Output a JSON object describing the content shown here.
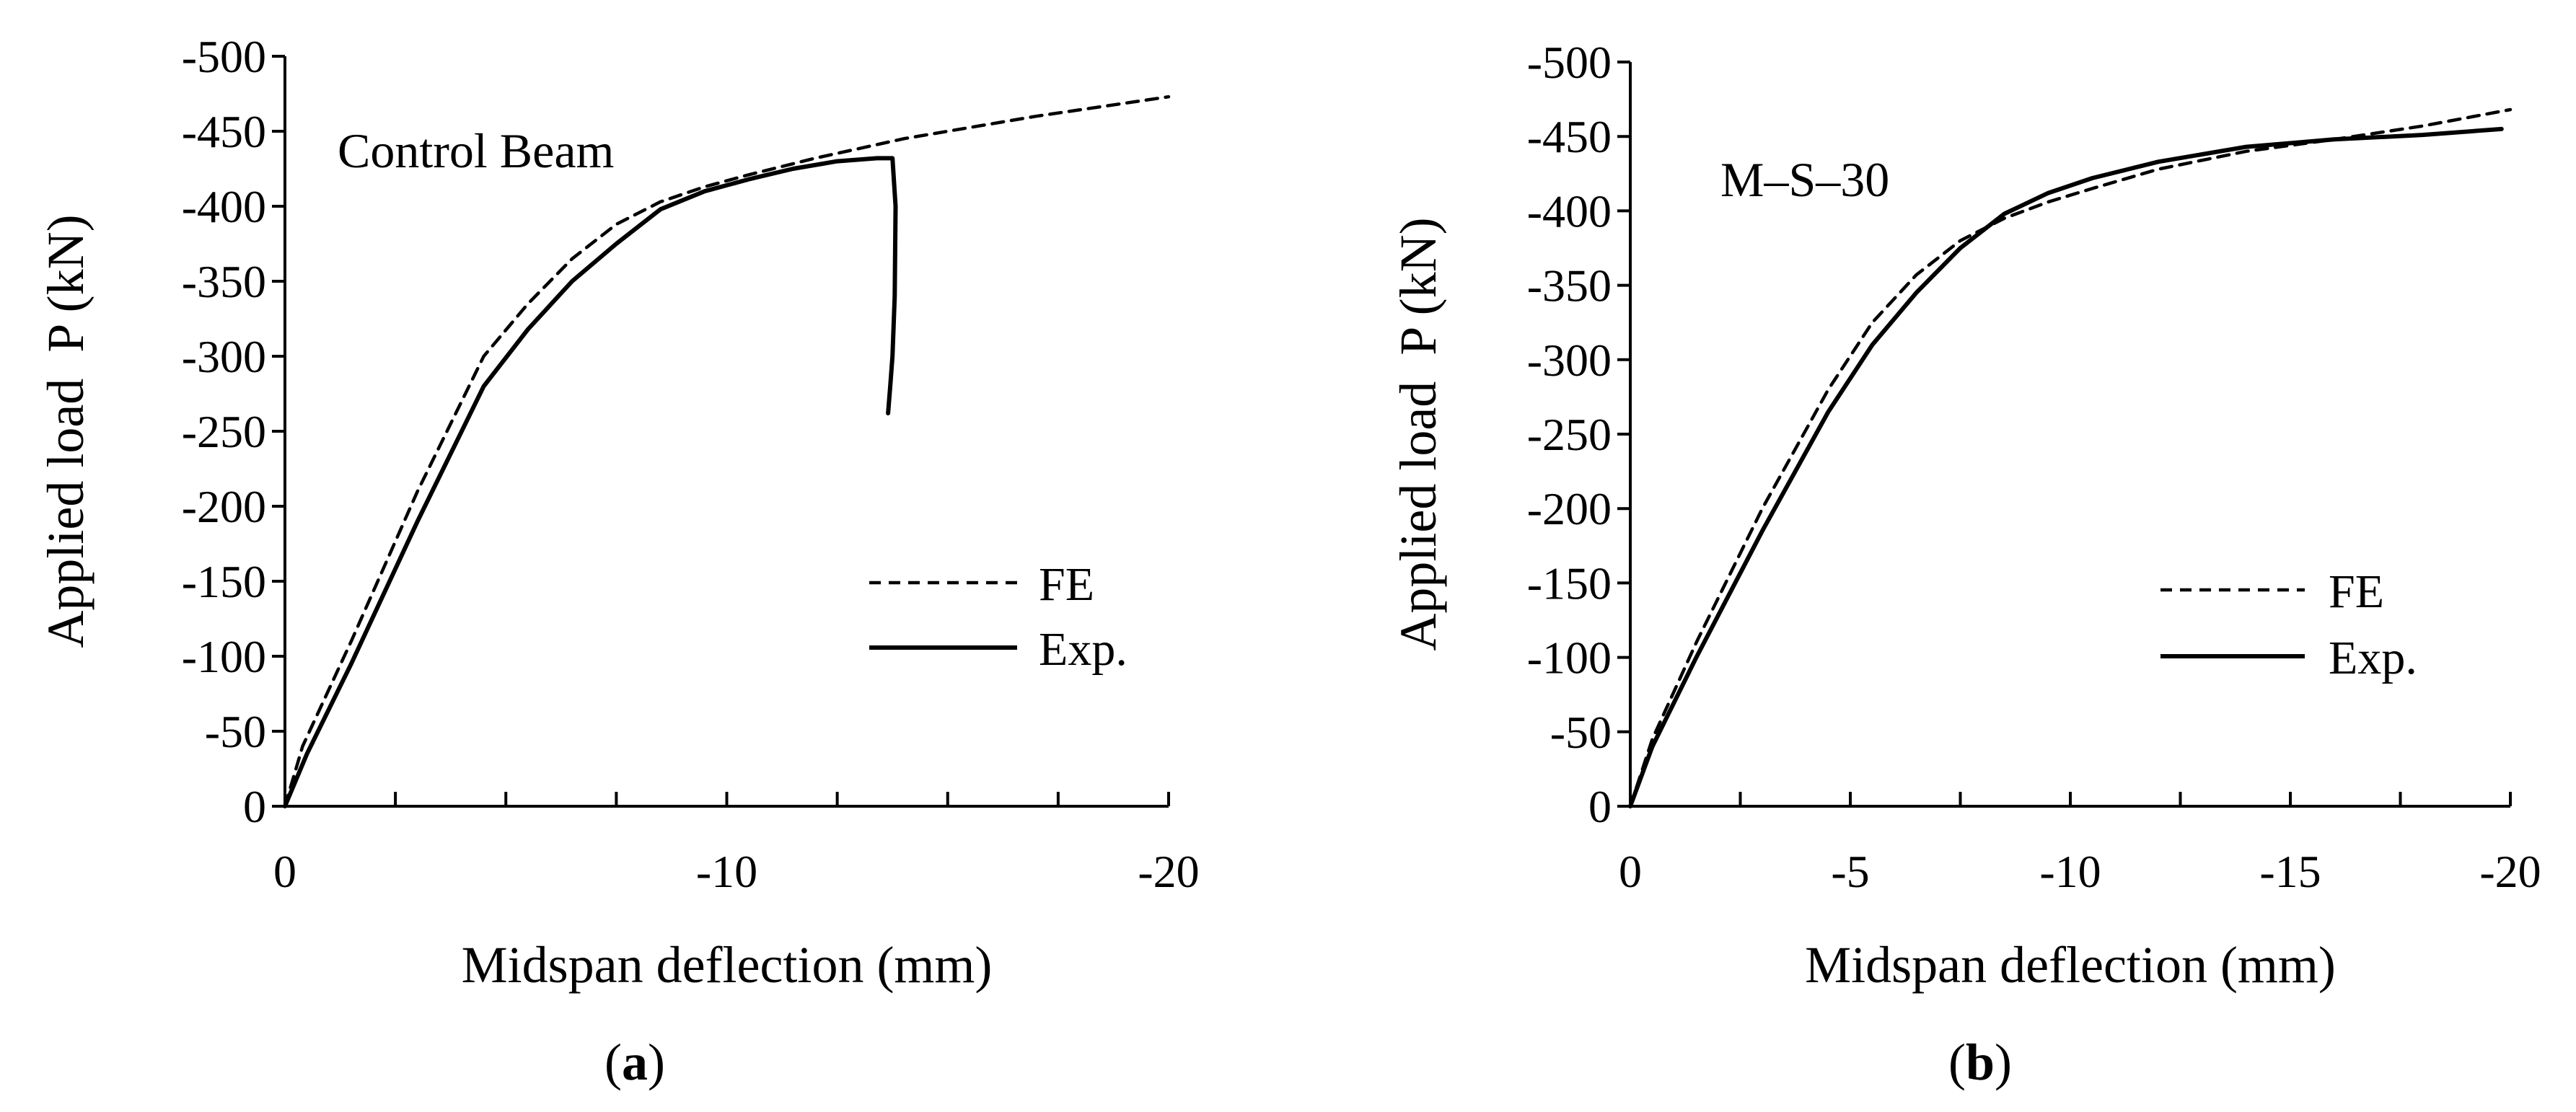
{
  "chart_data": [
    {
      "type": "line",
      "panel_label": "a",
      "annotation": "Control Beam",
      "xlabel": "Midspan deflection (mm)",
      "ylabel": "Applied load  P (kN)",
      "xlim": [
        0,
        -20
      ],
      "ylim": [
        0,
        -500
      ],
      "x_ticks": [
        0,
        -10,
        -20
      ],
      "x_tick_labels": [
        "0",
        "-10",
        "-20"
      ],
      "x_minor_ticks": [
        -2.5,
        -5,
        -7.5,
        -12.5,
        -15,
        -17.5
      ],
      "y_ticks": [
        0,
        -50,
        -100,
        -150,
        -200,
        -250,
        -300,
        -350,
        -400,
        -450,
        -500
      ],
      "y_tick_labels": [
        "0",
        "-50",
        "-100",
        "-150",
        "-200",
        "-250",
        "-300",
        "-350",
        "-400",
        "-450",
        "-500"
      ],
      "legend": {
        "position": "lower-right",
        "entries": [
          "FE",
          "Exp."
        ]
      },
      "series": [
        {
          "name": "FE",
          "style": "dashed",
          "x": [
            0,
            -0.4,
            -1.5,
            -3,
            -4.5,
            -5.5,
            -6.5,
            -7.5,
            -8.5,
            -9.5,
            -10.5,
            -12,
            -14,
            -17,
            -20
          ],
          "y": [
            0,
            -40,
            -110,
            -210,
            -300,
            -335,
            -365,
            -388,
            -403,
            -413,
            -421,
            -432,
            -445,
            -460,
            -473
          ]
        },
        {
          "name": "Exp.",
          "style": "solid",
          "x": [
            0,
            -0.5,
            -1.5,
            -3,
            -4.5,
            -5.5,
            -6.5,
            -7.5,
            -8.5,
            -9.5,
            -10.5,
            -11.5,
            -12.5,
            -13.4,
            -13.75,
            -13.82,
            -13.8,
            -13.75,
            -13.7,
            -13.65
          ],
          "y": [
            0,
            -35,
            -95,
            -190,
            -280,
            -318,
            -350,
            -375,
            -398,
            -410,
            -418,
            -425,
            -430,
            -432,
            -432,
            -400,
            -340,
            -300,
            -280,
            -262
          ]
        }
      ]
    },
    {
      "type": "line",
      "panel_label": "b",
      "annotation": "M–S–30",
      "xlabel": "Midspan deflection (mm)",
      "ylabel": "Applied load  P (kN)",
      "xlim": [
        0,
        -20
      ],
      "ylim": [
        0,
        -500
      ],
      "x_ticks": [
        0,
        -5,
        -10,
        -15,
        -20
      ],
      "x_tick_labels": [
        "0",
        "-5",
        "-10",
        "-15",
        "-20"
      ],
      "x_minor_ticks": [
        -2.5,
        -7.5,
        -12.5,
        -17.5
      ],
      "y_ticks": [
        0,
        -50,
        -100,
        -150,
        -200,
        -250,
        -300,
        -350,
        -400,
        -450,
        -500
      ],
      "y_tick_labels": [
        "0",
        "-50",
        "-100",
        "-150",
        "-200",
        "-250",
        "-300",
        "-350",
        "-400",
        "-450",
        "-500"
      ],
      "legend": {
        "position": "lower-right",
        "entries": [
          "FE",
          "Exp."
        ]
      },
      "series": [
        {
          "name": "FE",
          "style": "dashed",
          "x": [
            0,
            -0.5,
            -1.5,
            -3,
            -4.5,
            -5.5,
            -6.5,
            -7.5,
            -8.5,
            -9.5,
            -10.5,
            -12,
            -14,
            -16,
            -18,
            -20
          ],
          "y": [
            0,
            -45,
            -110,
            -200,
            -280,
            -325,
            -357,
            -380,
            -395,
            -406,
            -415,
            -428,
            -440,
            -448,
            -457,
            -468
          ]
        },
        {
          "name": "Exp.",
          "style": "solid",
          "x": [
            0,
            -0.5,
            -1.5,
            -3,
            -4.5,
            -5.5,
            -6.5,
            -7.5,
            -8.5,
            -9.5,
            -10.5,
            -12,
            -14,
            -16,
            -18,
            -19.8
          ],
          "y": [
            0,
            -40,
            -100,
            -185,
            -265,
            -310,
            -345,
            -375,
            -398,
            -412,
            -422,
            -433,
            -443,
            -448,
            -451,
            -455
          ]
        }
      ]
    }
  ]
}
